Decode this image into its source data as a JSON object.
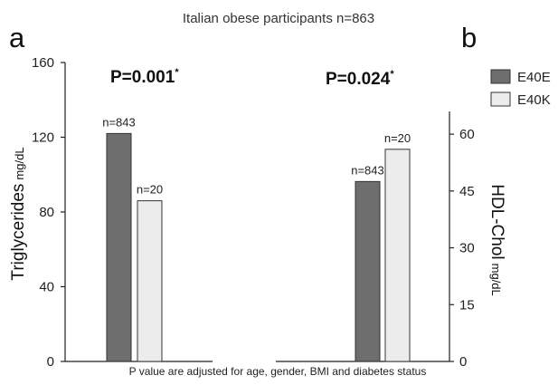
{
  "chart_data": [
    {
      "type": "bar",
      "panel_label": "a",
      "p_value": "P=0.001",
      "p_star": "*",
      "ylabel": "Triglycerides",
      "ylabel_unit": "mg/dL",
      "ylim": [
        0,
        160
      ],
      "yticks": [
        "0",
        "40",
        "80",
        "120",
        "160"
      ],
      "categories": [
        "E40E",
        "E40K"
      ],
      "values": [
        122,
        86
      ],
      "n_labels": [
        "n=843",
        "n=20"
      ]
    },
    {
      "type": "bar",
      "panel_label": "b",
      "p_value": "P=0.024",
      "p_star": "*",
      "ylabel": "HDL-Chol",
      "ylabel_unit": "mg/dL",
      "ylim": [
        0,
        66
      ],
      "yticks": [
        "0",
        "15",
        "30",
        "45",
        "60"
      ],
      "categories": [
        "E40E",
        "E40K"
      ],
      "values": [
        47.5,
        56
      ],
      "n_labels": [
        "n=843",
        "n=20"
      ]
    }
  ],
  "figure": {
    "title": "Italian obese participants n=863",
    "footnote": "P value are adjusted for age, gender, BMI and diabetes status"
  },
  "legend": {
    "items": [
      {
        "label": "E40E",
        "color": "#6e6e6e"
      },
      {
        "label": "E40K",
        "color": "#ececec"
      }
    ]
  },
  "colors": {
    "E40E": "#6e6e6e",
    "E40K": "#ececec",
    "stroke": "#333333"
  }
}
